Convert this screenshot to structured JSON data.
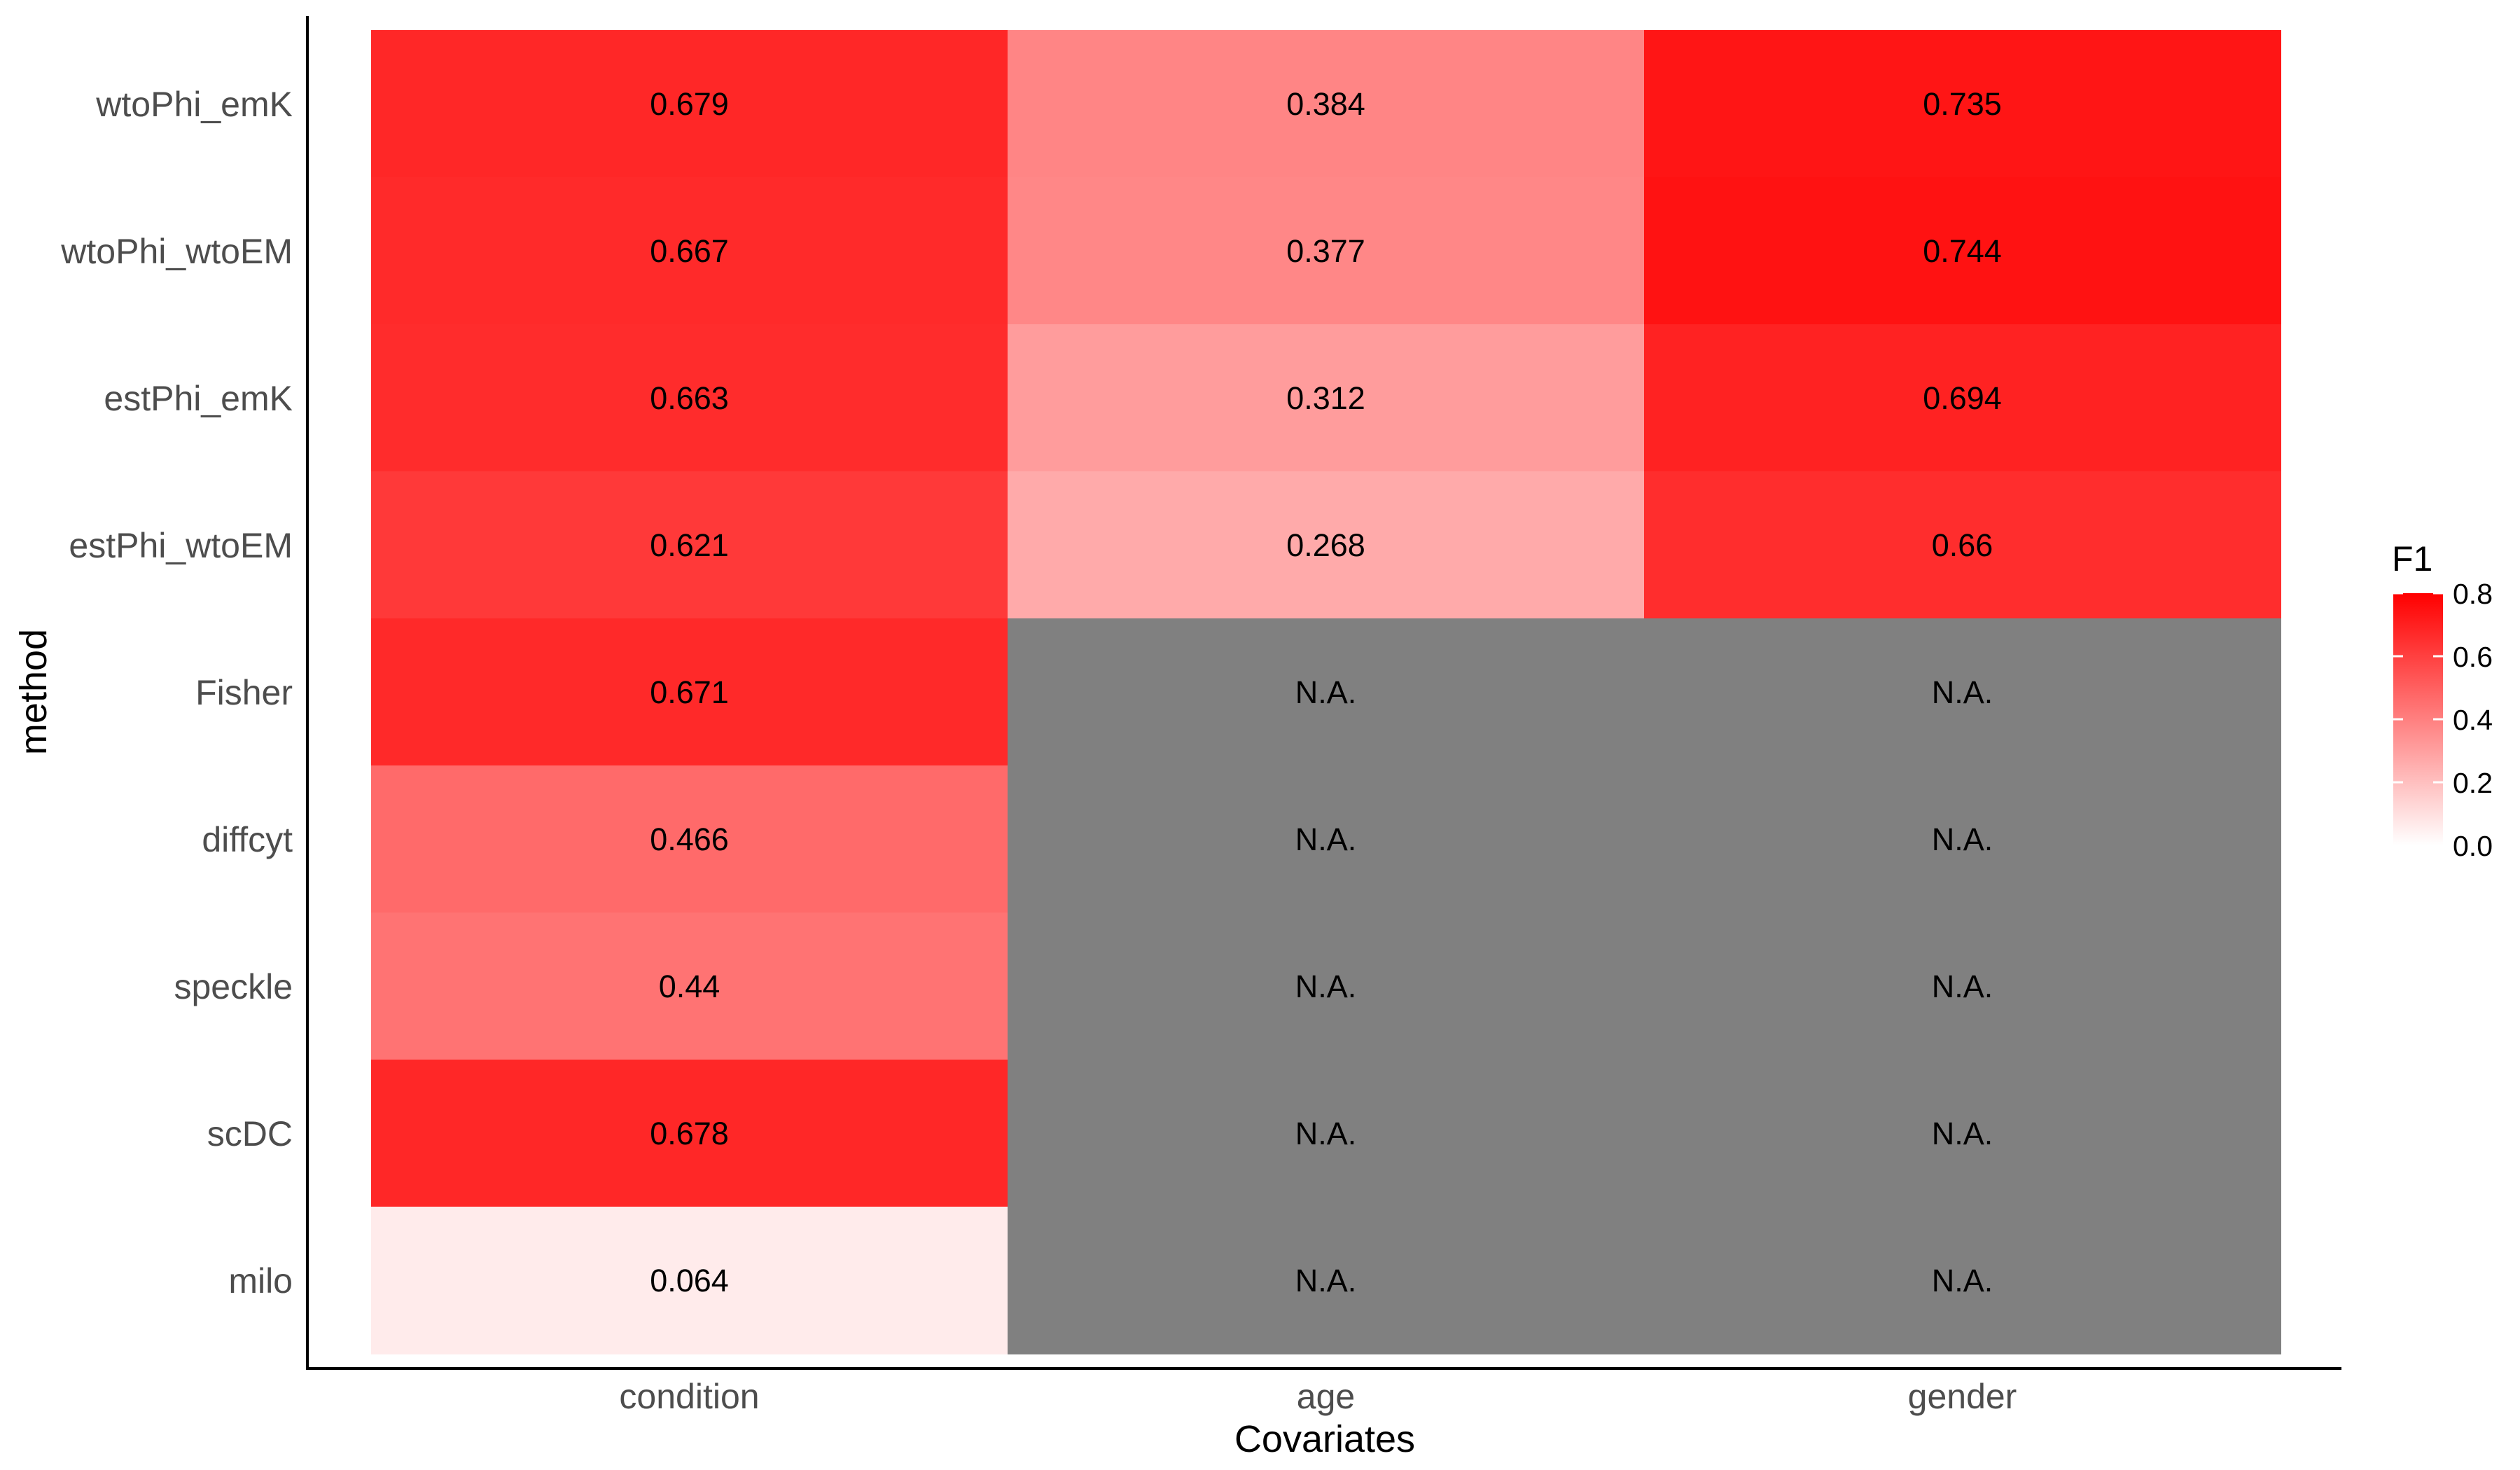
{
  "chart_data": {
    "type": "heatmap",
    "xlabel": "Covariates",
    "ylabel": "method",
    "x_categories": [
      "condition",
      "age",
      "gender"
    ],
    "y_categories": [
      "wtoPhi_emK",
      "wtoPhi_wtoEM",
      "estPhi_emK",
      "estPhi_wtoEM",
      "Fisher",
      "diffcyt",
      "speckle",
      "scDC",
      "milo"
    ],
    "values": [
      [
        0.679,
        0.384,
        0.735
      ],
      [
        0.667,
        0.377,
        0.744
      ],
      [
        0.663,
        0.312,
        0.694
      ],
      [
        0.621,
        0.268,
        0.66
      ],
      [
        0.671,
        null,
        null
      ],
      [
        0.466,
        null,
        null
      ],
      [
        0.44,
        null,
        null
      ],
      [
        0.678,
        null,
        null
      ],
      [
        0.064,
        null,
        null
      ]
    ],
    "labels": [
      [
        "0.679",
        "0.384",
        "0.735"
      ],
      [
        "0.667",
        "0.377",
        "0.744"
      ],
      [
        "0.663",
        "0.312",
        "0.694"
      ],
      [
        "0.621",
        "0.268",
        "0.66"
      ],
      [
        "0.671",
        "N.A.",
        "N.A."
      ],
      [
        "0.466",
        "N.A.",
        "N.A."
      ],
      [
        "0.44",
        "N.A.",
        "N.A."
      ],
      [
        "0.678",
        "N.A.",
        "N.A."
      ],
      [
        "0.064",
        "N.A.",
        "N.A."
      ]
    ],
    "legend": {
      "title": "F1",
      "range": [
        0,
        0.8
      ],
      "ticks": [
        0.0,
        0.2,
        0.4,
        0.6,
        0.8
      ],
      "tick_labels": [
        "0.0",
        "0.2",
        "0.4",
        "0.6",
        "0.8"
      ],
      "placement": "right"
    },
    "colors": {
      "low": "#ffffff",
      "high": "#ff0000",
      "na": "#808080"
    },
    "grid": false
  }
}
